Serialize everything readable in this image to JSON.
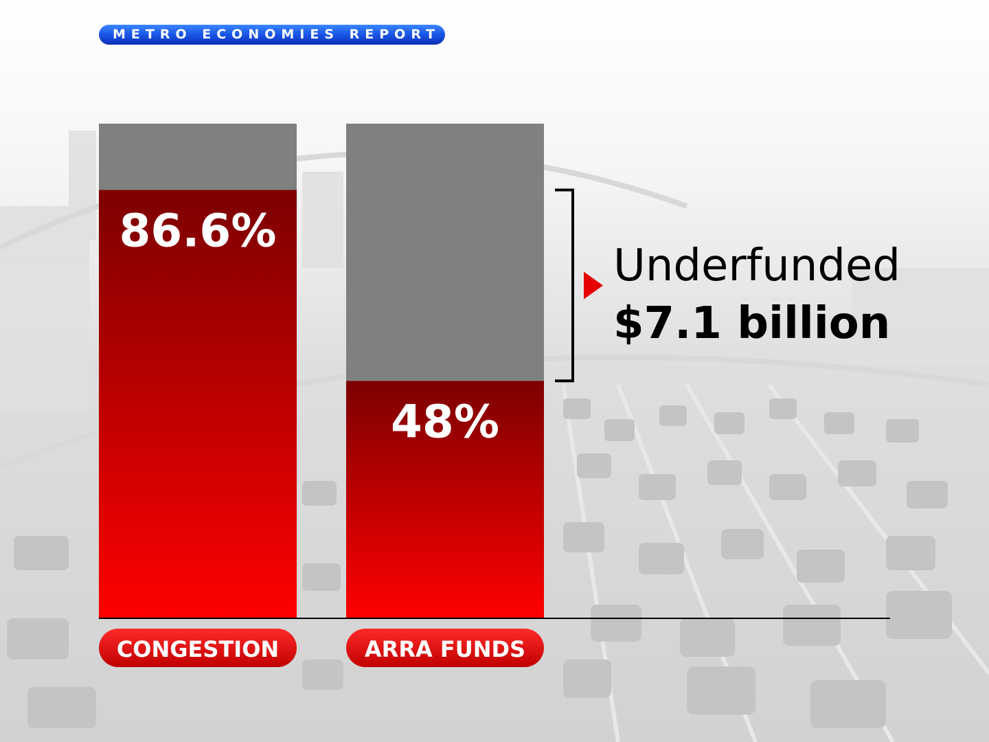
{
  "header": {
    "title": "METRO ECONOMIES REPORT"
  },
  "colors": {
    "header_pill": "#1a55e6",
    "bar_fill_top": "#7d0000",
    "bar_fill_bottom": "#ff0000",
    "bar_remainder": "#808080",
    "label_pill": "#e60000",
    "annotation_marker": "#e60000"
  },
  "chart_data": {
    "type": "bar",
    "categories": [
      "CONGESTION",
      "ARRA FUNDS"
    ],
    "values": [
      86.6,
      48
    ],
    "value_labels": [
      "86.6%",
      "48%"
    ],
    "ylim": [
      0,
      100
    ],
    "stacked_remainder": true,
    "title": "",
    "xlabel": "",
    "ylabel": "",
    "grid": false,
    "annotation": {
      "label": "Underfunded",
      "value": "$7.1 billion",
      "spans_category": "ARRA FUNDS",
      "from": 48,
      "to": 86.6
    }
  },
  "background": {
    "image": "highway-traffic-photo"
  }
}
